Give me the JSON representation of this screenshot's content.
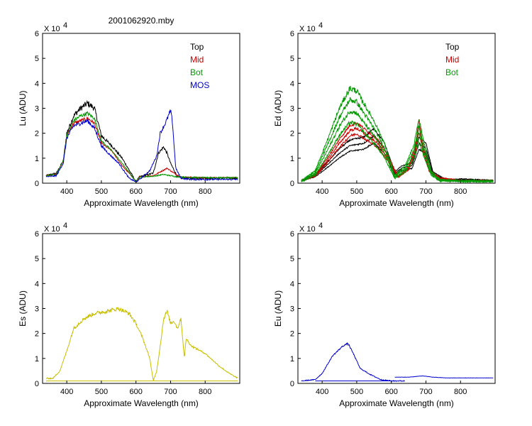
{
  "figure_title": "2001062920.mby",
  "chart_data": [
    {
      "type": "line",
      "xlabel": "Approximate Wavelength (nm)",
      "ylabel": "Lu (ADU)",
      "y_multiplier": "X 10",
      "y_multiplier_exp": "4",
      "xlim": [
        330,
        900
      ],
      "ylim": [
        0,
        6
      ],
      "xticks": [
        400,
        500,
        600,
        700,
        800
      ],
      "yticks": [
        0,
        1,
        2,
        3,
        4,
        5,
        6
      ],
      "legend_position": "top-right",
      "series": [
        {
          "name": "Top",
          "color": "#000000",
          "noise": 0.12,
          "envelope": [
            [
              340,
              0.3
            ],
            [
              370,
              0.4
            ],
            [
              390,
              0.9
            ],
            [
              400,
              2.0
            ],
            [
              420,
              2.7
            ],
            [
              440,
              3.0
            ],
            [
              460,
              3.2
            ],
            [
              480,
              3.0
            ],
            [
              500,
              1.9
            ],
            [
              530,
              1.5
            ],
            [
              560,
              1.0
            ],
            [
              590,
              0.3
            ],
            [
              600,
              0.05
            ],
            [
              610,
              0.25
            ],
            [
              650,
              0.4
            ],
            [
              665,
              1.2
            ],
            [
              680,
              1.45
            ],
            [
              690,
              1.2
            ],
            [
              700,
              0.8
            ],
            [
              720,
              0.25
            ],
            [
              740,
              0.2
            ],
            [
              800,
              0.2
            ],
            [
              895,
              0.2
            ]
          ]
        },
        {
          "name": "Mid",
          "color": "#cc0000",
          "noise": 0.08,
          "envelope": [
            [
              340,
              0.3
            ],
            [
              370,
              0.35
            ],
            [
              390,
              0.9
            ],
            [
              400,
              1.9
            ],
            [
              420,
              2.4
            ],
            [
              440,
              2.5
            ],
            [
              460,
              2.6
            ],
            [
              480,
              2.4
            ],
            [
              500,
              1.6
            ],
            [
              530,
              1.3
            ],
            [
              560,
              0.7
            ],
            [
              590,
              0.25
            ],
            [
              600,
              0.05
            ],
            [
              610,
              0.25
            ],
            [
              650,
              0.3
            ],
            [
              670,
              0.45
            ],
            [
              690,
              0.6
            ],
            [
              710,
              0.4
            ],
            [
              730,
              0.25
            ],
            [
              800,
              0.22
            ],
            [
              895,
              0.22
            ]
          ]
        },
        {
          "name": "Bot",
          "color": "#009900",
          "noise": 0.08,
          "envelope": [
            [
              340,
              0.3
            ],
            [
              370,
              0.35
            ],
            [
              390,
              0.9
            ],
            [
              400,
              1.9
            ],
            [
              420,
              2.5
            ],
            [
              440,
              2.7
            ],
            [
              460,
              2.8
            ],
            [
              480,
              2.6
            ],
            [
              500,
              1.7
            ],
            [
              530,
              1.3
            ],
            [
              560,
              0.8
            ],
            [
              590,
              0.25
            ],
            [
              600,
              0.05
            ],
            [
              610,
              0.25
            ],
            [
              650,
              0.28
            ],
            [
              680,
              0.35
            ],
            [
              700,
              0.3
            ],
            [
              720,
              0.25
            ],
            [
              800,
              0.22
            ],
            [
              895,
              0.22
            ]
          ]
        },
        {
          "name": "MOS",
          "color": "#0000cc",
          "noise": 0.1,
          "envelope": [
            [
              340,
              0.25
            ],
            [
              370,
              0.3
            ],
            [
              390,
              0.8
            ],
            [
              400,
              1.8
            ],
            [
              420,
              2.3
            ],
            [
              440,
              2.4
            ],
            [
              460,
              2.5
            ],
            [
              480,
              2.2
            ],
            [
              500,
              1.5
            ],
            [
              520,
              1.2
            ],
            [
              550,
              0.8
            ],
            [
              580,
              0.2
            ],
            [
              600,
              0.05
            ],
            [
              610,
              0.15
            ],
            [
              640,
              0.5
            ],
            [
              660,
              1.1
            ],
            [
              670,
              2.0
            ],
            [
              685,
              2.4
            ],
            [
              700,
              2.9
            ],
            [
              705,
              2.5
            ],
            [
              715,
              0.6
            ],
            [
              730,
              0.2
            ],
            [
              760,
              0.15
            ],
            [
              895,
              0.15
            ]
          ]
        }
      ]
    },
    {
      "type": "line",
      "xlabel": "Approximate Wavelength (nm)",
      "ylabel": "Ed  (ADU)",
      "y_multiplier": "X 10",
      "y_multiplier_exp": "4",
      "xlim": [
        330,
        900
      ],
      "ylim": [
        0,
        6
      ],
      "xticks": [
        400,
        500,
        600,
        700,
        800
      ],
      "yticks": [
        0,
        1,
        2,
        3,
        4,
        5,
        6
      ],
      "legend_position": "top-right",
      "series": [
        {
          "name": "Top",
          "color": "#000000",
          "noise": 0.06,
          "copies": [
            1.0,
            1.15,
            0.85
          ],
          "envelope": [
            [
              340,
              0.1
            ],
            [
              380,
              0.3
            ],
            [
              420,
              0.8
            ],
            [
              450,
              1.2
            ],
            [
              480,
              1.5
            ],
            [
              520,
              1.6
            ],
            [
              550,
              1.9
            ],
            [
              580,
              1.4
            ],
            [
              610,
              0.4
            ],
            [
              630,
              0.6
            ],
            [
              660,
              0.7
            ],
            [
              680,
              1.6
            ],
            [
              700,
              1.4
            ],
            [
              720,
              0.4
            ],
            [
              760,
              0.1
            ],
            [
              800,
              0.15
            ],
            [
              895,
              0.1
            ]
          ]
        },
        {
          "name": "Mid",
          "color": "#cc0000",
          "noise": 0.08,
          "copies": [
            1.0,
            1.1,
            0.9
          ],
          "envelope": [
            [
              340,
              0.1
            ],
            [
              380,
              0.3
            ],
            [
              420,
              1.0
            ],
            [
              450,
              1.6
            ],
            [
              480,
              2.1
            ],
            [
              500,
              2.2
            ],
            [
              530,
              1.9
            ],
            [
              560,
              1.6
            ],
            [
              590,
              1.0
            ],
            [
              620,
              0.25
            ],
            [
              650,
              0.6
            ],
            [
              670,
              1.4
            ],
            [
              680,
              2.3
            ],
            [
              690,
              1.5
            ],
            [
              710,
              0.5
            ],
            [
              740,
              0.2
            ],
            [
              800,
              0.1
            ],
            [
              895,
              0.1
            ]
          ]
        },
        {
          "name": "Bot",
          "color": "#009900",
          "noise": 0.1,
          "copies": [
            1.0,
            0.88,
            0.76,
            0.64
          ],
          "envelope": [
            [
              340,
              0.1
            ],
            [
              380,
              0.5
            ],
            [
              420,
              1.9
            ],
            [
              450,
              3.0
            ],
            [
              480,
              3.8
            ],
            [
              500,
              3.7
            ],
            [
              520,
              3.2
            ],
            [
              550,
              2.5
            ],
            [
              580,
              1.6
            ],
            [
              610,
              0.3
            ],
            [
              640,
              0.7
            ],
            [
              665,
              1.5
            ],
            [
              680,
              2.6
            ],
            [
              695,
              1.6
            ],
            [
              715,
              0.5
            ],
            [
              740,
              0.15
            ],
            [
              800,
              0.1
            ],
            [
              895,
              0.1
            ]
          ]
        }
      ]
    },
    {
      "type": "line",
      "xlabel": "Approximate Wavelength (nm)",
      "ylabel": "Es  (ADU)",
      "y_multiplier": "X 10",
      "y_multiplier_exp": "4",
      "xlim": [
        330,
        900
      ],
      "ylim": [
        0,
        6
      ],
      "xticks": [
        400,
        500,
        600,
        700,
        800
      ],
      "yticks": [
        0,
        1,
        2,
        3,
        4,
        5,
        6
      ],
      "series": [
        {
          "color": "#c8c000",
          "noise": 0.08,
          "envelope": [
            [
              340,
              0.2
            ],
            [
              360,
              0.2
            ],
            [
              380,
              0.5
            ],
            [
              400,
              1.3
            ],
            [
              420,
              2.2
            ],
            [
              450,
              2.6
            ],
            [
              480,
              2.8
            ],
            [
              520,
              2.9
            ],
            [
              550,
              3.0
            ],
            [
              580,
              2.8
            ],
            [
              600,
              2.4
            ],
            [
              620,
              1.8
            ],
            [
              640,
              1.0
            ],
            [
              650,
              0.1
            ],
            [
              660,
              0.5
            ],
            [
              670,
              1.5
            ],
            [
              680,
              2.6
            ],
            [
              690,
              2.9
            ],
            [
              700,
              2.4
            ],
            [
              710,
              2.5
            ],
            [
              720,
              2.2
            ],
            [
              730,
              2.6
            ],
            [
              740,
              1.0
            ],
            [
              745,
              1.8
            ],
            [
              760,
              1.5
            ],
            [
              800,
              1.2
            ],
            [
              840,
              0.7
            ],
            [
              870,
              0.4
            ],
            [
              895,
              0.2
            ]
          ]
        },
        {
          "color": "#c8c000",
          "noise": 0.0,
          "envelope": [
            [
              340,
              0.1
            ],
            [
              895,
              0.1
            ]
          ]
        }
      ]
    },
    {
      "type": "line",
      "xlabel": "Approximate Wavelength (nm)",
      "ylabel": "Eu  (ADU)",
      "y_multiplier": "X 10",
      "y_multiplier_exp": "4",
      "xlim": [
        330,
        900
      ],
      "ylim": [
        0,
        6
      ],
      "xticks": [
        400,
        500,
        600,
        700,
        800
      ],
      "yticks": [
        0,
        1,
        2,
        3,
        4,
        5,
        6
      ],
      "series": [
        {
          "color": "#0000cc",
          "noise": 0.06,
          "envelope": [
            [
              340,
              0.1
            ],
            [
              380,
              0.15
            ],
            [
              400,
              0.4
            ],
            [
              430,
              1.1
            ],
            [
              460,
              1.5
            ],
            [
              475,
              1.6
            ],
            [
              490,
              1.2
            ],
            [
              510,
              0.6
            ],
            [
              540,
              0.35
            ],
            [
              570,
              0.15
            ],
            [
              600,
              0.1
            ],
            [
              640,
              0.1
            ]
          ]
        },
        {
          "color": "#0000cc",
          "noise": 0.015,
          "envelope": [
            [
              610,
              0.25
            ],
            [
              650,
              0.25
            ],
            [
              690,
              0.3
            ],
            [
              720,
              0.25
            ],
            [
              760,
              0.22
            ],
            [
              895,
              0.22
            ]
          ]
        },
        {
          "color": "#0000cc",
          "noise": 0.0,
          "envelope": [
            [
              380,
              0.1
            ],
            [
              600,
              0.1
            ]
          ]
        }
      ]
    }
  ]
}
